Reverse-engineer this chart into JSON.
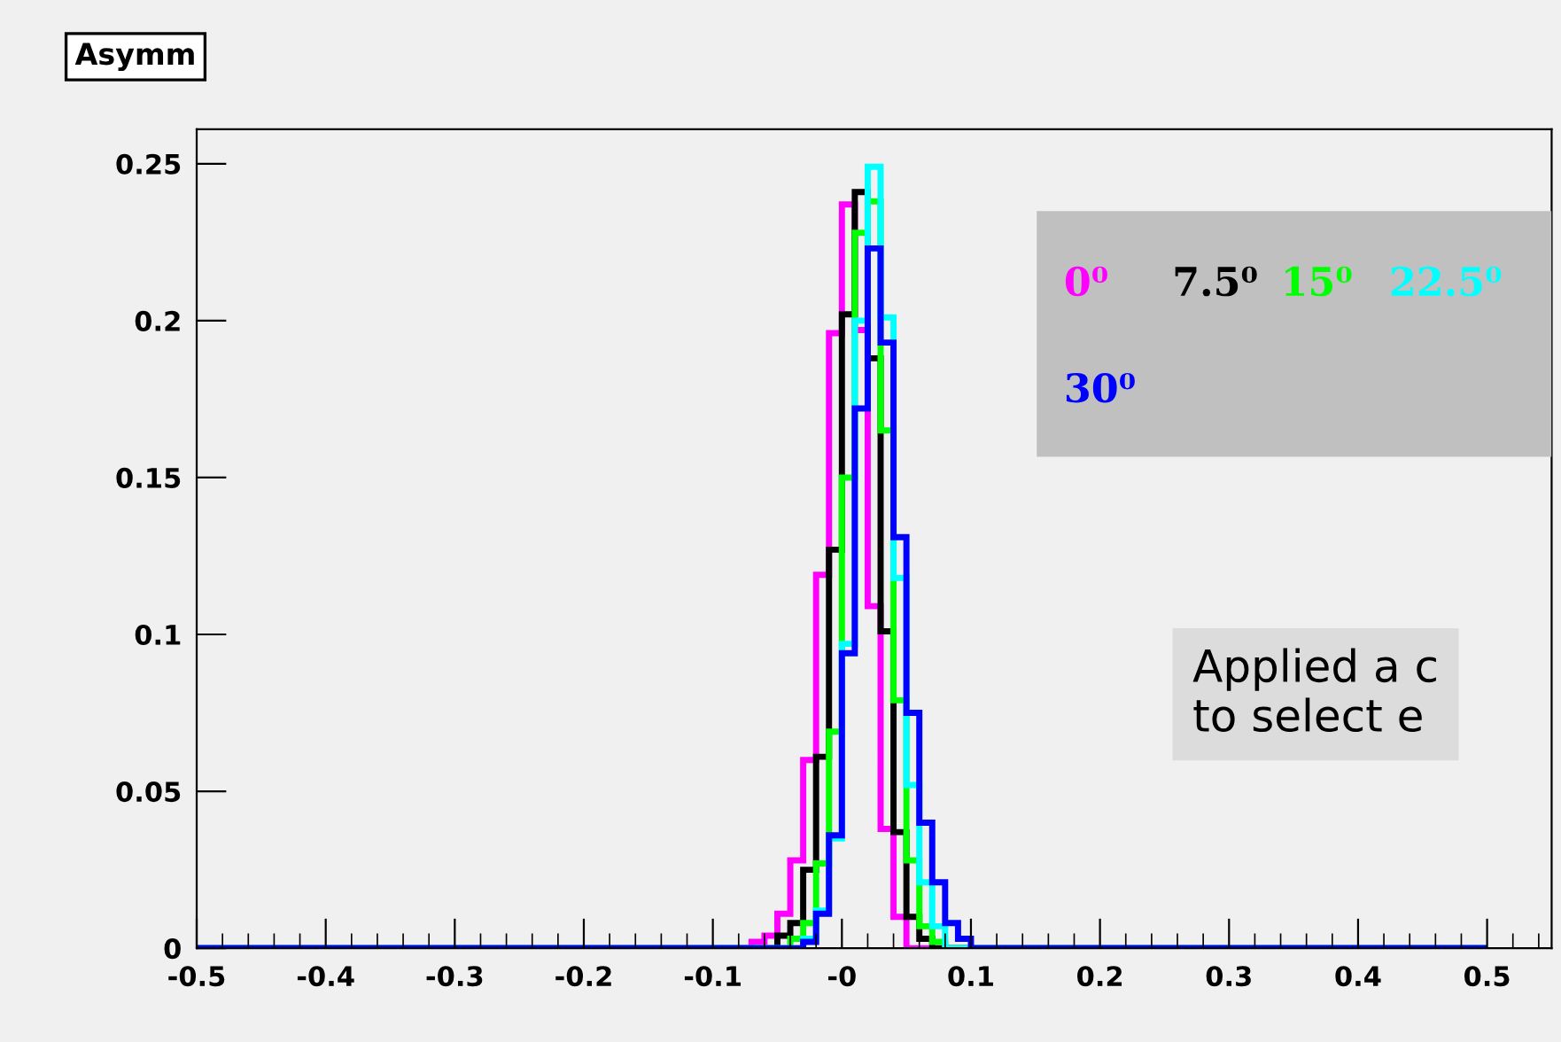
{
  "chart_data": {
    "type": "histogram",
    "title": "Asymm",
    "bins": [
      -0.5,
      -0.49,
      -0.48,
      -0.47,
      -0.46,
      -0.45,
      -0.44,
      -0.43,
      -0.42,
      -0.41,
      -0.4,
      -0.39,
      -0.38,
      -0.37,
      -0.36,
      -0.35,
      -0.34,
      -0.33,
      -0.32,
      -0.31,
      -0.3,
      -0.29,
      -0.28,
      -0.27,
      -0.26,
      -0.25,
      -0.24,
      -0.23,
      -0.22,
      -0.21,
      -0.2,
      -0.19,
      -0.18,
      -0.17,
      -0.16,
      -0.15,
      -0.14,
      -0.13,
      -0.12,
      -0.11,
      -0.1,
      -0.09,
      -0.08,
      -0.07,
      -0.06,
      -0.05,
      -0.04,
      -0.03,
      -0.02,
      -0.01,
      0,
      0.01,
      0.02,
      0.03,
      0.04,
      0.05,
      0.06,
      0.07,
      0.08,
      0.09,
      0.1,
      0.11,
      0.12,
      0.13,
      0.14,
      0.15,
      0.16,
      0.17,
      0.18,
      0.19,
      0.2,
      0.21,
      0.22,
      0.23,
      0.24,
      0.25,
      0.26,
      0.27,
      0.28,
      0.29,
      0.3,
      0.31,
      0.32,
      0.33,
      0.34,
      0.35,
      0.36,
      0.37,
      0.38,
      0.39,
      0.4,
      0.41,
      0.42,
      0.43,
      0.44,
      0.45,
      0.46,
      0.47,
      0.48,
      0.49,
      0.5
    ],
    "series": [
      {
        "name": "0⁰",
        "color": "#ff00ff",
        "values": [
          0,
          0,
          0,
          0,
          0,
          0,
          0,
          0,
          0,
          0,
          0,
          0,
          0,
          0,
          0,
          0,
          0,
          0,
          0,
          0,
          0,
          0,
          0,
          0,
          0,
          0,
          0,
          0,
          0,
          0,
          0,
          0,
          0,
          0,
          0,
          0,
          0,
          0,
          0,
          0,
          0,
          0,
          0,
          0.002,
          0.004,
          0.011,
          0.028,
          0.06,
          0.119,
          0.196,
          0.237,
          0.197,
          0.109,
          0.038,
          0.01,
          0,
          0,
          0,
          0,
          0,
          0,
          0,
          0,
          0,
          0,
          0,
          0,
          0,
          0,
          0,
          0,
          0,
          0,
          0,
          0,
          0,
          0,
          0,
          0,
          0,
          0,
          0,
          0,
          0,
          0,
          0,
          0,
          0,
          0,
          0,
          0,
          0,
          0,
          0,
          0,
          0,
          0,
          0,
          0,
          0
        ]
      },
      {
        "name": "7.5⁰",
        "color": "#000000",
        "values": [
          0,
          0,
          0,
          0,
          0,
          0,
          0,
          0,
          0,
          0,
          0,
          0,
          0,
          0,
          0,
          0,
          0,
          0,
          0,
          0,
          0,
          0,
          0,
          0,
          0,
          0,
          0,
          0,
          0,
          0,
          0,
          0,
          0,
          0,
          0,
          0,
          0,
          0,
          0,
          0,
          0,
          0,
          0,
          0,
          0,
          0.004,
          0.008,
          0.025,
          0.061,
          0.127,
          0.202,
          0.241,
          0.188,
          0.101,
          0.037,
          0.01,
          0.003,
          0,
          0,
          0,
          0,
          0,
          0,
          0,
          0,
          0,
          0,
          0,
          0,
          0,
          0,
          0,
          0,
          0,
          0,
          0,
          0,
          0,
          0,
          0,
          0,
          0,
          0,
          0,
          0,
          0,
          0,
          0,
          0,
          0,
          0,
          0,
          0,
          0,
          0,
          0,
          0,
          0,
          0,
          0
        ]
      },
      {
        "name": "15⁰",
        "color": "#00ff00",
        "values": [
          0,
          0,
          0,
          0,
          0,
          0,
          0,
          0,
          0,
          0,
          0,
          0,
          0,
          0,
          0,
          0,
          0,
          0,
          0,
          0,
          0,
          0,
          0,
          0,
          0,
          0,
          0,
          0,
          0,
          0,
          0,
          0,
          0,
          0,
          0,
          0,
          0,
          0,
          0,
          0,
          0,
          0,
          0,
          0,
          0,
          0,
          0.003,
          0.008,
          0.027,
          0.069,
          0.15,
          0.228,
          0.238,
          0.165,
          0.079,
          0.028,
          0.007,
          0.002,
          0,
          0,
          0,
          0,
          0,
          0,
          0,
          0,
          0,
          0,
          0,
          0,
          0,
          0,
          0,
          0,
          0,
          0,
          0,
          0,
          0,
          0,
          0,
          0,
          0,
          0,
          0,
          0,
          0,
          0,
          0,
          0,
          0,
          0,
          0,
          0,
          0,
          0,
          0,
          0,
          0,
          0
        ]
      },
      {
        "name": "22.5⁰",
        "color": "#00ffff",
        "values": [
          0,
          0,
          0,
          0,
          0,
          0,
          0,
          0,
          0,
          0,
          0,
          0,
          0,
          0,
          0,
          0,
          0,
          0,
          0,
          0,
          0,
          0,
          0,
          0,
          0,
          0,
          0,
          0,
          0,
          0,
          0,
          0,
          0,
          0,
          0,
          0,
          0,
          0,
          0,
          0,
          0,
          0,
          0,
          0,
          0,
          0,
          0,
          0.003,
          0.012,
          0.035,
          0.097,
          0.2,
          0.249,
          0.201,
          0.118,
          0.052,
          0.021,
          0.007,
          0,
          0,
          0,
          0,
          0,
          0,
          0,
          0,
          0,
          0,
          0,
          0,
          0,
          0,
          0,
          0,
          0,
          0,
          0,
          0,
          0,
          0,
          0,
          0,
          0,
          0,
          0,
          0,
          0,
          0,
          0,
          0,
          0,
          0,
          0,
          0,
          0,
          0,
          0,
          0,
          0,
          0
        ]
      },
      {
        "name": "30⁰",
        "color": "#0000ff",
        "values": [
          0,
          0,
          0,
          0,
          0,
          0,
          0,
          0,
          0,
          0,
          0,
          0,
          0,
          0,
          0,
          0,
          0,
          0,
          0,
          0,
          0,
          0,
          0,
          0,
          0,
          0,
          0,
          0,
          0,
          0,
          0,
          0,
          0,
          0,
          0,
          0,
          0,
          0,
          0,
          0,
          0,
          0,
          0,
          0,
          0,
          0,
          0,
          0.002,
          0.011,
          0.036,
          0.094,
          0.172,
          0.223,
          0.193,
          0.131,
          0.075,
          0.04,
          0.021,
          0.008,
          0.003,
          0,
          0,
          0,
          0,
          0,
          0,
          0,
          0,
          0,
          0,
          0,
          0,
          0,
          0,
          0,
          0,
          0,
          0,
          0,
          0,
          0,
          0,
          0,
          0,
          0,
          0,
          0,
          0,
          0,
          0,
          0,
          0,
          0,
          0,
          0,
          0,
          0,
          0,
          0,
          0
        ]
      }
    ],
    "xlim": [
      -0.5,
      0.55
    ],
    "ylim": [
      0,
      0.261
    ],
    "xticks": [
      -0.5,
      -0.4,
      -0.3,
      -0.2,
      -0.1,
      {
        "value": 0,
        "label": "-0"
      },
      0.1,
      0.2,
      0.3,
      0.4,
      0.5
    ],
    "yticks": [
      {
        "value": 0,
        "label": "0"
      },
      0.05,
      0.1,
      0.15,
      0.2,
      0.25
    ],
    "annotations": [
      "Applied a c\nto select e"
    ]
  }
}
